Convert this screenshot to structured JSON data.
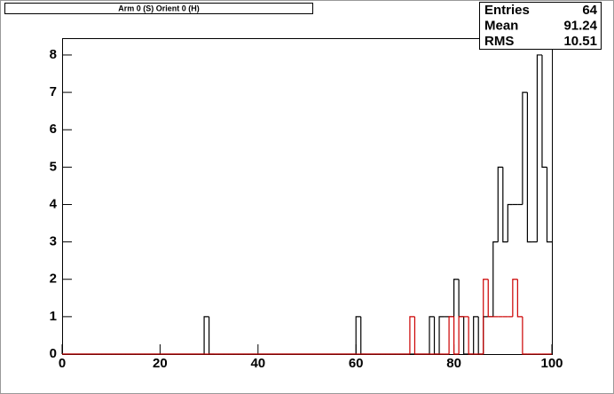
{
  "chart_data": {
    "type": "histogram",
    "title": "Arm 0 (S) Orient 0 (H)",
    "stats": {
      "labels": [
        "Entries",
        "Mean",
        "RMS"
      ],
      "values": [
        64,
        91.24,
        10.51
      ]
    },
    "bins": [
      0,
      1,
      2,
      3,
      4,
      5,
      6,
      7,
      8,
      9,
      10,
      11,
      12,
      13,
      14,
      15,
      16,
      17,
      18,
      19,
      20,
      21,
      22,
      23,
      24,
      25,
      26,
      27,
      28,
      29,
      30,
      31,
      32,
      33,
      34,
      35,
      36,
      37,
      38,
      39,
      40,
      41,
      42,
      43,
      44,
      45,
      46,
      47,
      48,
      49,
      50,
      51,
      52,
      53,
      54,
      55,
      56,
      57,
      58,
      59,
      60,
      61,
      62,
      63,
      64,
      65,
      66,
      67,
      68,
      69,
      70,
      71,
      72,
      73,
      74,
      75,
      76,
      77,
      78,
      79,
      80,
      81,
      82,
      83,
      84,
      85,
      86,
      87,
      88,
      89,
      90,
      91,
      92,
      93,
      94,
      95,
      96,
      97,
      98,
      99,
      100
    ],
    "series": [
      {
        "color": "#000000",
        "values": [
          0,
          0,
          0,
          0,
          0,
          0,
          0,
          0,
          0,
          0,
          0,
          0,
          0,
          0,
          0,
          0,
          0,
          0,
          0,
          0,
          0,
          0,
          0,
          0,
          0,
          0,
          0,
          0,
          0,
          1,
          0,
          0,
          0,
          0,
          0,
          0,
          0,
          0,
          0,
          0,
          0,
          0,
          0,
          0,
          0,
          0,
          0,
          0,
          0,
          0,
          0,
          0,
          0,
          0,
          0,
          0,
          0,
          0,
          0,
          0,
          1,
          0,
          0,
          0,
          0,
          0,
          0,
          0,
          0,
          0,
          0,
          0,
          0,
          0,
          0,
          1,
          0,
          1,
          1,
          1,
          2,
          1,
          0,
          0,
          1,
          0,
          1,
          1,
          3,
          5,
          3,
          4,
          4,
          4,
          7,
          3,
          3,
          8,
          5,
          3
        ]
      },
      {
        "color": "#cc0000",
        "values": [
          0,
          0,
          0,
          0,
          0,
          0,
          0,
          0,
          0,
          0,
          0,
          0,
          0,
          0,
          0,
          0,
          0,
          0,
          0,
          0,
          0,
          0,
          0,
          0,
          0,
          0,
          0,
          0,
          0,
          0,
          0,
          0,
          0,
          0,
          0,
          0,
          0,
          0,
          0,
          0,
          0,
          0,
          0,
          0,
          0,
          0,
          0,
          0,
          0,
          0,
          0,
          0,
          0,
          0,
          0,
          0,
          0,
          0,
          0,
          0,
          0,
          0,
          0,
          0,
          0,
          0,
          0,
          0,
          0,
          0,
          0,
          1,
          0,
          0,
          0,
          0,
          0,
          0,
          0,
          1,
          0,
          1,
          1,
          0,
          0,
          0,
          2,
          1,
          1,
          1,
          1,
          1,
          2,
          1,
          0,
          0,
          0,
          0,
          0,
          0
        ]
      }
    ],
    "xlim": [
      0,
      100
    ],
    "xticks": [
      0,
      20,
      40,
      60,
      80,
      100
    ],
    "ylim": [
      0,
      8.45
    ],
    "yticks": [
      0,
      1,
      2,
      3,
      4,
      5,
      6,
      7,
      8
    ]
  }
}
